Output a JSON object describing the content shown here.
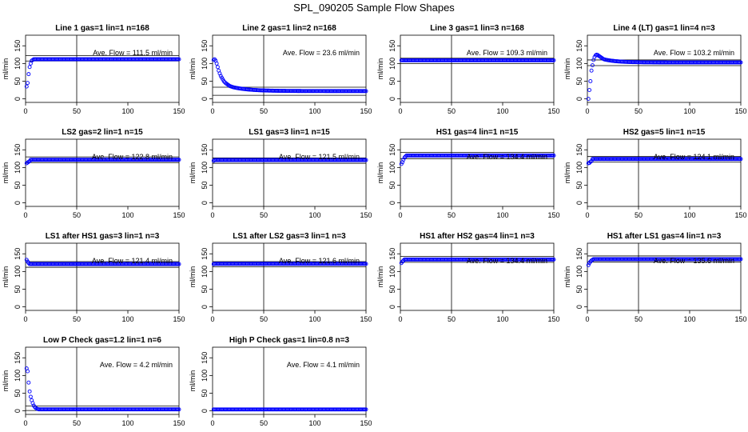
{
  "title": "SPL_090205  Sample Flow Shapes",
  "chart_data": [
    {
      "type": "scatter",
      "title": "Line 1 gas=1 lin=1 n=168",
      "ylabel": "ml/min",
      "xlim": [
        0,
        150
      ],
      "ylim": [
        -10,
        180
      ],
      "xticks": [
        0,
        50,
        100,
        150
      ],
      "yticks": [
        0,
        50,
        100,
        150
      ],
      "annotation": "Ave. Flow =  111.5  ml/min",
      "ave_flow": 111.5,
      "vline_x": 50,
      "hlines": [
        107,
        122
      ],
      "shape": {
        "start": [
          35,
          45,
          70,
          90,
          100,
          108,
          110
        ],
        "settle": 112
      }
    },
    {
      "type": "scatter",
      "title": "Line 2 gas=1 lin=2 n=168",
      "ylabel": "ml/min",
      "xlim": [
        0,
        150
      ],
      "ylim": [
        -10,
        180
      ],
      "xticks": [
        0,
        50,
        100,
        150
      ],
      "yticks": [
        0,
        50,
        100,
        150
      ],
      "annotation": "Ave. Flow =  23.6  ml/min",
      "ave_flow": 23.6,
      "vline_x": 50,
      "hlines": [
        10,
        33
      ],
      "shape": {
        "start": [
          110,
          112,
          108,
          100,
          90,
          80,
          72,
          65,
          60,
          55,
          50,
          47,
          44,
          42,
          40,
          38,
          36,
          35,
          34,
          33
        ],
        "settle": 22,
        "decay": 0.06
      }
    },
    {
      "type": "scatter",
      "title": "Line 3 gas=1 lin=3 n=168",
      "ylabel": "ml/min",
      "xlim": [
        0,
        150
      ],
      "ylim": [
        -10,
        180
      ],
      "xticks": [
        0,
        50,
        100,
        150
      ],
      "yticks": [
        0,
        50,
        100,
        150
      ],
      "annotation": "Ave. Flow =  109.3  ml/min",
      "ave_flow": 109.3,
      "vline_x": 50,
      "hlines": [
        100,
        115
      ],
      "shape": {
        "start": [
          109
        ],
        "settle": 109
      }
    },
    {
      "type": "scatter",
      "title": "Line 4 (LT) gas=1 lin=4 n=3",
      "ylabel": "ml/min",
      "xlim": [
        0,
        150
      ],
      "ylim": [
        -10,
        180
      ],
      "xticks": [
        0,
        50,
        100,
        150
      ],
      "yticks": [
        0,
        50,
        100,
        150
      ],
      "annotation": "Ave. Flow =  103.2  ml/min",
      "ave_flow": 103.2,
      "vline_x": 50,
      "hlines": [
        94,
        110
      ],
      "shape": {
        "start": [
          0,
          25,
          50,
          80,
          95,
          110,
          118,
          123,
          125,
          124,
          122,
          120,
          118,
          116,
          114,
          112
        ],
        "settle": 103,
        "decay": 0.08
      }
    },
    {
      "type": "scatter",
      "title": "LS2 gas=2 lin=1 n=15",
      "ylabel": "ml/min",
      "xlim": [
        0,
        150
      ],
      "ylim": [
        -10,
        180
      ],
      "xticks": [
        0,
        50,
        100,
        150
      ],
      "yticks": [
        0,
        50,
        100,
        150
      ],
      "annotation": "Ave. Flow =  122.8  ml/min",
      "ave_flow": 122.8,
      "vline_x": 50,
      "hlines": [
        114,
        130
      ],
      "shape": {
        "start": [
          112,
          114,
          116,
          118
        ],
        "settle": 122
      }
    },
    {
      "type": "scatter",
      "title": "LS1 gas=3 lin=1 n=15",
      "ylabel": "ml/min",
      "xlim": [
        0,
        150
      ],
      "ylim": [
        -10,
        180
      ],
      "xticks": [
        0,
        50,
        100,
        150
      ],
      "yticks": [
        0,
        50,
        100,
        150
      ],
      "annotation": "Ave. Flow =  121.5  ml/min",
      "ave_flow": 121.5,
      "vline_x": 50,
      "hlines": [
        112,
        127
      ],
      "shape": {
        "start": [
          119
        ],
        "settle": 121
      }
    },
    {
      "type": "scatter",
      "title": "HS1 gas=4 lin=1 n=15",
      "ylabel": "ml/min",
      "xlim": [
        0,
        150
      ],
      "ylim": [
        -10,
        180
      ],
      "xticks": [
        0,
        50,
        100,
        150
      ],
      "yticks": [
        0,
        50,
        100,
        150
      ],
      "annotation": "Ave. Flow =  134.4  ml/min",
      "ave_flow": 134.4,
      "vline_x": 50,
      "hlines": [
        125,
        143
      ],
      "shape": {
        "start": [
          110,
          115,
          122,
          128,
          131
        ],
        "settle": 134
      }
    },
    {
      "type": "scatter",
      "title": "HS2 gas=5 lin=1 n=15",
      "ylabel": "ml/min",
      "xlim": [
        0,
        150
      ],
      "ylim": [
        -10,
        180
      ],
      "xticks": [
        0,
        50,
        100,
        150
      ],
      "yticks": [
        0,
        50,
        100,
        150
      ],
      "annotation": "Ave. Flow =  124.1  ml/min",
      "ave_flow": 124.1,
      "vline_x": 50,
      "hlines": [
        115,
        131
      ],
      "shape": {
        "start": [
          112,
          113,
          116,
          118
        ],
        "settle": 124
      }
    },
    {
      "type": "scatter",
      "title": "LS1 after HS1 gas=3 lin=1 n=3",
      "ylabel": "ml/min",
      "xlim": [
        0,
        150
      ],
      "ylim": [
        -10,
        180
      ],
      "xticks": [
        0,
        50,
        100,
        150
      ],
      "yticks": [
        0,
        50,
        100,
        150
      ],
      "annotation": "Ave. Flow =  121.4  ml/min",
      "ave_flow": 121.4,
      "vline_x": 50,
      "hlines": [
        112,
        128
      ],
      "shape": {
        "start": [
          133,
          128,
          124
        ],
        "settle": 121
      }
    },
    {
      "type": "scatter",
      "title": "LS1 after LS2 gas=3 lin=1 n=3",
      "ylabel": "ml/min",
      "xlim": [
        0,
        150
      ],
      "ylim": [
        -10,
        180
      ],
      "xticks": [
        0,
        50,
        100,
        150
      ],
      "yticks": [
        0,
        50,
        100,
        150
      ],
      "annotation": "Ave. Flow =  121.6  ml/min",
      "ave_flow": 121.6,
      "vline_x": 50,
      "hlines": [
        113,
        128
      ],
      "shape": {
        "start": [
          121
        ],
        "settle": 121.6
      }
    },
    {
      "type": "scatter",
      "title": "HS1 after HS2 gas=4 lin=1 n=3",
      "ylabel": "ml/min",
      "xlim": [
        0,
        150
      ],
      "ylim": [
        -10,
        180
      ],
      "xticks": [
        0,
        50,
        100,
        150
      ],
      "yticks": [
        0,
        50,
        100,
        150
      ],
      "annotation": "Ave. Flow =  134.4  ml/min",
      "ave_flow": 134.4,
      "vline_x": 50,
      "hlines": [
        126,
        143
      ],
      "shape": {
        "start": [
          124,
          128,
          131
        ],
        "settle": 134
      }
    },
    {
      "type": "scatter",
      "title": "HS1 after LS1 gas=4 lin=1 n=3",
      "ylabel": "ml/min",
      "xlim": [
        0,
        150
      ],
      "ylim": [
        -10,
        180
      ],
      "xticks": [
        0,
        50,
        100,
        150
      ],
      "yticks": [
        0,
        50,
        100,
        150
      ],
      "annotation": "Ave. Flow =  135.6  ml/min",
      "ave_flow": 135.6,
      "vline_x": 50,
      "hlines": [
        127,
        144
      ],
      "shape": {
        "start": [
          118,
          124,
          128,
          131,
          133
        ],
        "settle": 135
      }
    },
    {
      "type": "scatter",
      "title": "Low P Check gas=1.2 lin=1 n=6",
      "ylabel": "ml/min",
      "xlim": [
        0,
        150
      ],
      "ylim": [
        -10,
        180
      ],
      "xticks": [
        0,
        50,
        100,
        150
      ],
      "yticks": [
        0,
        50,
        100,
        150
      ],
      "annotation": "Ave. Flow =  4.2  ml/min",
      "ave_flow": 4.2,
      "vline_x": 50,
      "hlines": [
        1,
        14
      ],
      "shape": {
        "start": [
          120,
          112,
          80,
          55,
          40,
          30,
          22,
          15,
          11,
          8,
          6,
          5
        ],
        "settle": 4.2
      }
    },
    {
      "type": "scatter",
      "title": "High P Check gas=1 lin=0.8 n=3",
      "ylabel": "ml/min",
      "xlim": [
        0,
        150
      ],
      "ylim": [
        -10,
        180
      ],
      "xticks": [
        0,
        50,
        100,
        150
      ],
      "yticks": [
        0,
        50,
        100,
        150
      ],
      "annotation": "Ave. Flow =  4.1  ml/min",
      "ave_flow": 4.1,
      "vline_x": 50,
      "hlines": [],
      "shape": {
        "start": [
          4.1
        ],
        "settle": 4.1
      }
    }
  ],
  "colors": {
    "points": "#0000ff",
    "axis": "#000000",
    "background": "#ffffff"
  }
}
